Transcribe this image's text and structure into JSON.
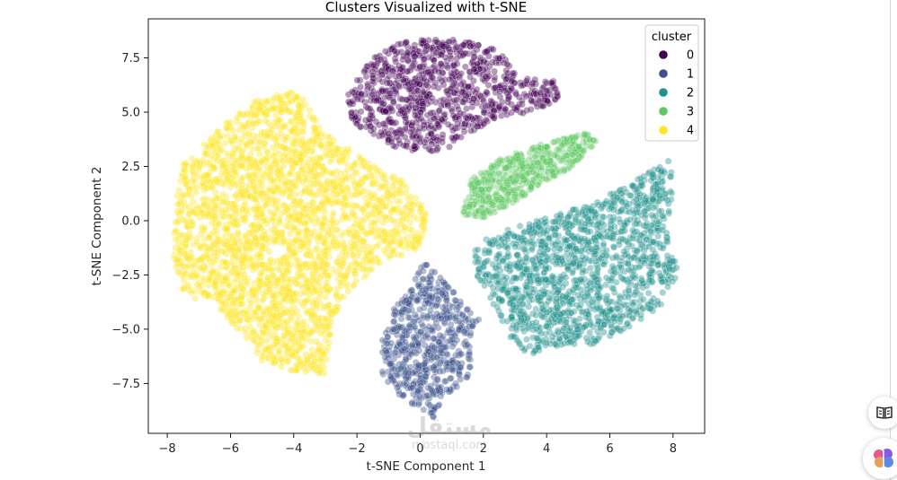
{
  "chart_data": {
    "type": "scatter",
    "title": "Clusters Visualized with t-SNE",
    "xlabel": "t-SNE Component 1",
    "ylabel": "t-SNE Component 2",
    "xlim": [
      -8.6,
      9.0
    ],
    "ylim": [
      -9.8,
      9.3
    ],
    "xticks": [
      -8,
      -6,
      -4,
      -2,
      0,
      2,
      4,
      6,
      8
    ],
    "yticks": [
      -7.5,
      -5.0,
      -2.5,
      0.0,
      2.5,
      5.0,
      7.5
    ],
    "xtick_labels": [
      "−8",
      "−6",
      "−4",
      "−2",
      "0",
      "2",
      "4",
      "6",
      "8"
    ],
    "ytick_labels": [
      "−7.5",
      "−5.0",
      "−2.5",
      "0.0",
      "2.5",
      "5.0",
      "7.5"
    ],
    "grid": false,
    "legend": {
      "title": "cluster",
      "placement": "top-right"
    },
    "point_alpha": 0.4,
    "series": [
      {
        "name": "0",
        "color": "#440154",
        "count": 900,
        "region": [
          [
            -2.3,
            5.8
          ],
          [
            -1.7,
            7.3
          ],
          [
            -0.5,
            8.3
          ],
          [
            1.0,
            8.4
          ],
          [
            2.2,
            8.0
          ],
          [
            3.0,
            7.2
          ],
          [
            3.0,
            6.6
          ],
          [
            4.4,
            6.4
          ],
          [
            4.4,
            5.6
          ],
          [
            3.5,
            5.0
          ],
          [
            2.3,
            4.7
          ],
          [
            1.6,
            4.0
          ],
          [
            0.7,
            3.2
          ],
          [
            -0.5,
            3.2
          ],
          [
            -1.5,
            3.9
          ],
          [
            -2.2,
            4.6
          ]
        ]
      },
      {
        "name": "1",
        "color": "#3b528b",
        "count": 600,
        "region": [
          [
            0.1,
            -1.9
          ],
          [
            0.5,
            -2.3
          ],
          [
            1.2,
            -3.5
          ],
          [
            1.9,
            -4.6
          ],
          [
            1.6,
            -5.4
          ],
          [
            1.6,
            -7.3
          ],
          [
            0.8,
            -8.0
          ],
          [
            0.4,
            -9.1
          ],
          [
            -0.6,
            -8.1
          ],
          [
            -1.2,
            -7.3
          ],
          [
            -1.2,
            -5.5
          ],
          [
            -0.9,
            -4.2
          ],
          [
            -0.3,
            -3.0
          ]
        ]
      },
      {
        "name": "2",
        "color": "#21918c",
        "count": 1400,
        "region": [
          [
            1.7,
            -1.2
          ],
          [
            2.5,
            -0.5
          ],
          [
            4.2,
            0.2
          ],
          [
            5.7,
            1.0
          ],
          [
            7.2,
            2.2
          ],
          [
            7.9,
            2.8
          ],
          [
            8.0,
            1.5
          ],
          [
            7.8,
            -0.5
          ],
          [
            8.2,
            -2.5
          ],
          [
            7.6,
            -4.0
          ],
          [
            6.5,
            -5.0
          ],
          [
            5.5,
            -5.7
          ],
          [
            4.2,
            -5.8
          ],
          [
            3.4,
            -6.2
          ],
          [
            2.8,
            -5.3
          ],
          [
            2.2,
            -3.5
          ],
          [
            1.7,
            -2.3
          ]
        ]
      },
      {
        "name": "3",
        "color": "#5ec962",
        "count": 500,
        "region": [
          [
            1.3,
            0.3
          ],
          [
            1.6,
            1.9
          ],
          [
            2.6,
            2.9
          ],
          [
            4.0,
            3.6
          ],
          [
            5.4,
            4.1
          ],
          [
            5.6,
            3.6
          ],
          [
            4.8,
            2.5
          ],
          [
            3.4,
            1.2
          ],
          [
            2.0,
            0.1
          ]
        ]
      },
      {
        "name": "4",
        "color": "#fde725",
        "count": 2600,
        "region": [
          [
            -7.8,
            0.2
          ],
          [
            -7.5,
            2.6
          ],
          [
            -6.3,
            4.3
          ],
          [
            -5.2,
            5.6
          ],
          [
            -3.9,
            6.0
          ],
          [
            -3.1,
            4.2
          ],
          [
            -1.8,
            2.8
          ],
          [
            -0.5,
            1.8
          ],
          [
            0.2,
            0.4
          ],
          [
            0.1,
            -1.2
          ],
          [
            -1.1,
            -1.9
          ],
          [
            -2.1,
            -3.0
          ],
          [
            -2.8,
            -4.5
          ],
          [
            -2.9,
            -6.1
          ],
          [
            -3.0,
            -7.1
          ],
          [
            -4.1,
            -6.9
          ],
          [
            -5.0,
            -6.5
          ],
          [
            -5.6,
            -5.3
          ],
          [
            -6.2,
            -4.3
          ],
          [
            -7.5,
            -3.3
          ],
          [
            -7.8,
            -2.0
          ]
        ]
      }
    ]
  },
  "side_buttons": {
    "reader_icon": "open-book-icon",
    "assistant_icon": "brain-icon"
  },
  "watermark": {
    "arabic": "مستقل",
    "latin": "mostaql.com"
  }
}
